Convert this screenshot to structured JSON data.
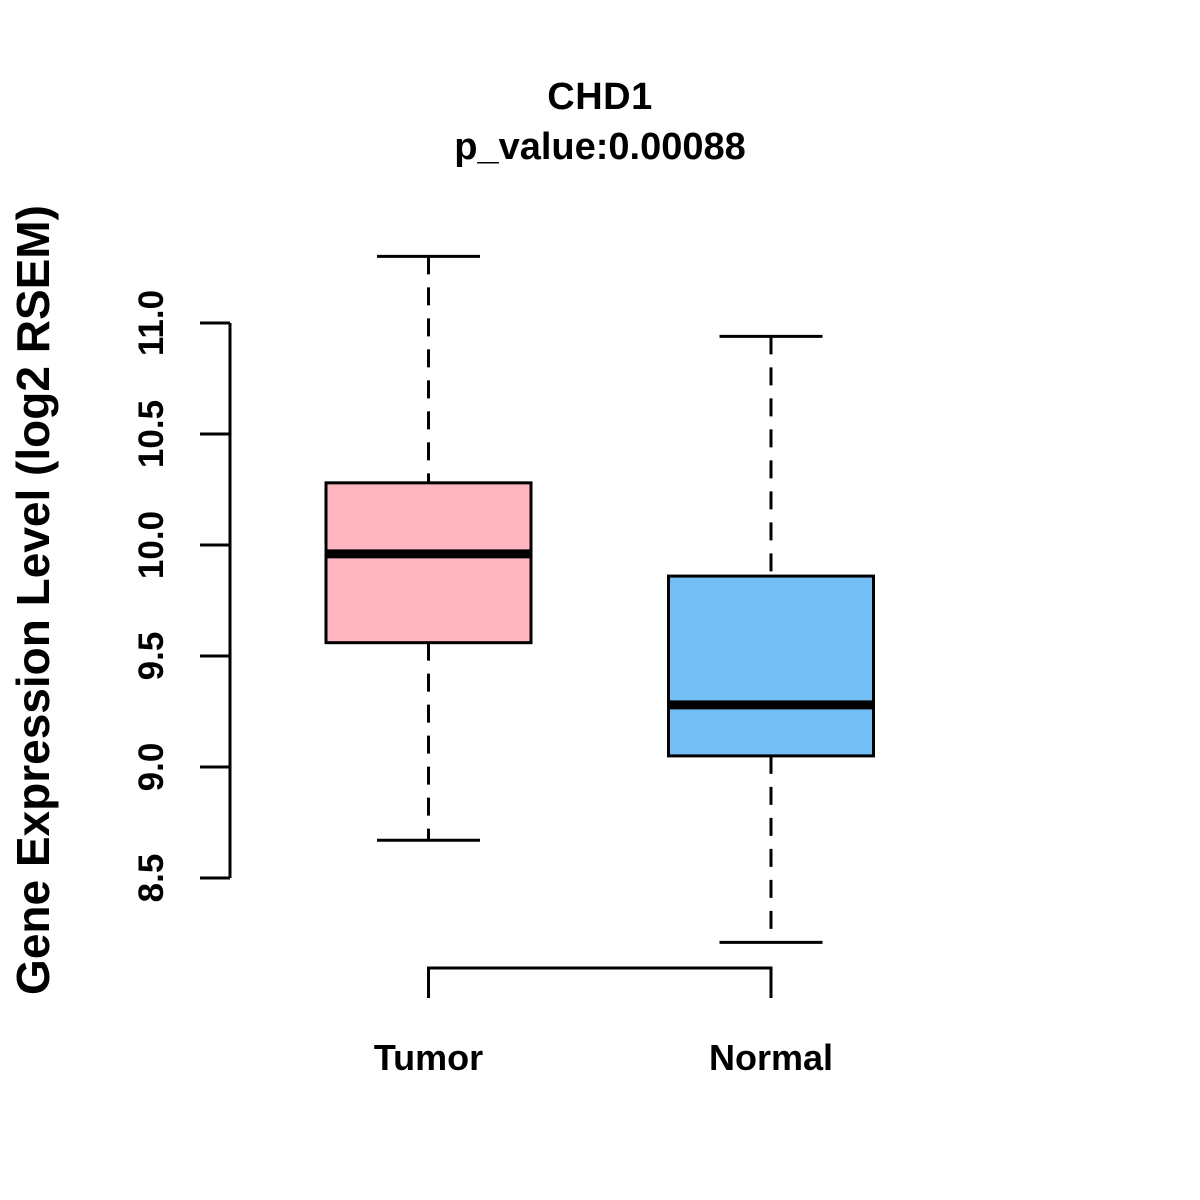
{
  "page": {
    "background_color": "#FFFFFF",
    "text_color": "#000000"
  },
  "chart_data": {
    "type": "boxplot",
    "title": "CHD1",
    "subtitle": "p_value:0.00088",
    "ylabel": "Gene Expression Level (log2 RSEM)",
    "xlabel": "",
    "ylim": [
      8.5,
      11.0
    ],
    "yticks": [
      "8.5",
      "9.0",
      "9.5",
      "10.0",
      "10.5",
      "11.0"
    ],
    "grid": false,
    "legend_position": "none",
    "categories": [
      "Tumor",
      "Normal"
    ],
    "series": [
      {
        "name": "Tumor",
        "whisker_low": 8.67,
        "q1": 9.56,
        "median": 9.96,
        "q3": 10.28,
        "whisker_high": 11.3,
        "fill_color": "#FFB6C1"
      },
      {
        "name": "Normal",
        "whisker_low": 8.21,
        "q1": 9.05,
        "median": 9.28,
        "q3": 9.86,
        "whisker_high": 10.94,
        "fill_color": "#73BFF5"
      }
    ],
    "line_color": "#000000",
    "whisker_style": "dashed"
  }
}
